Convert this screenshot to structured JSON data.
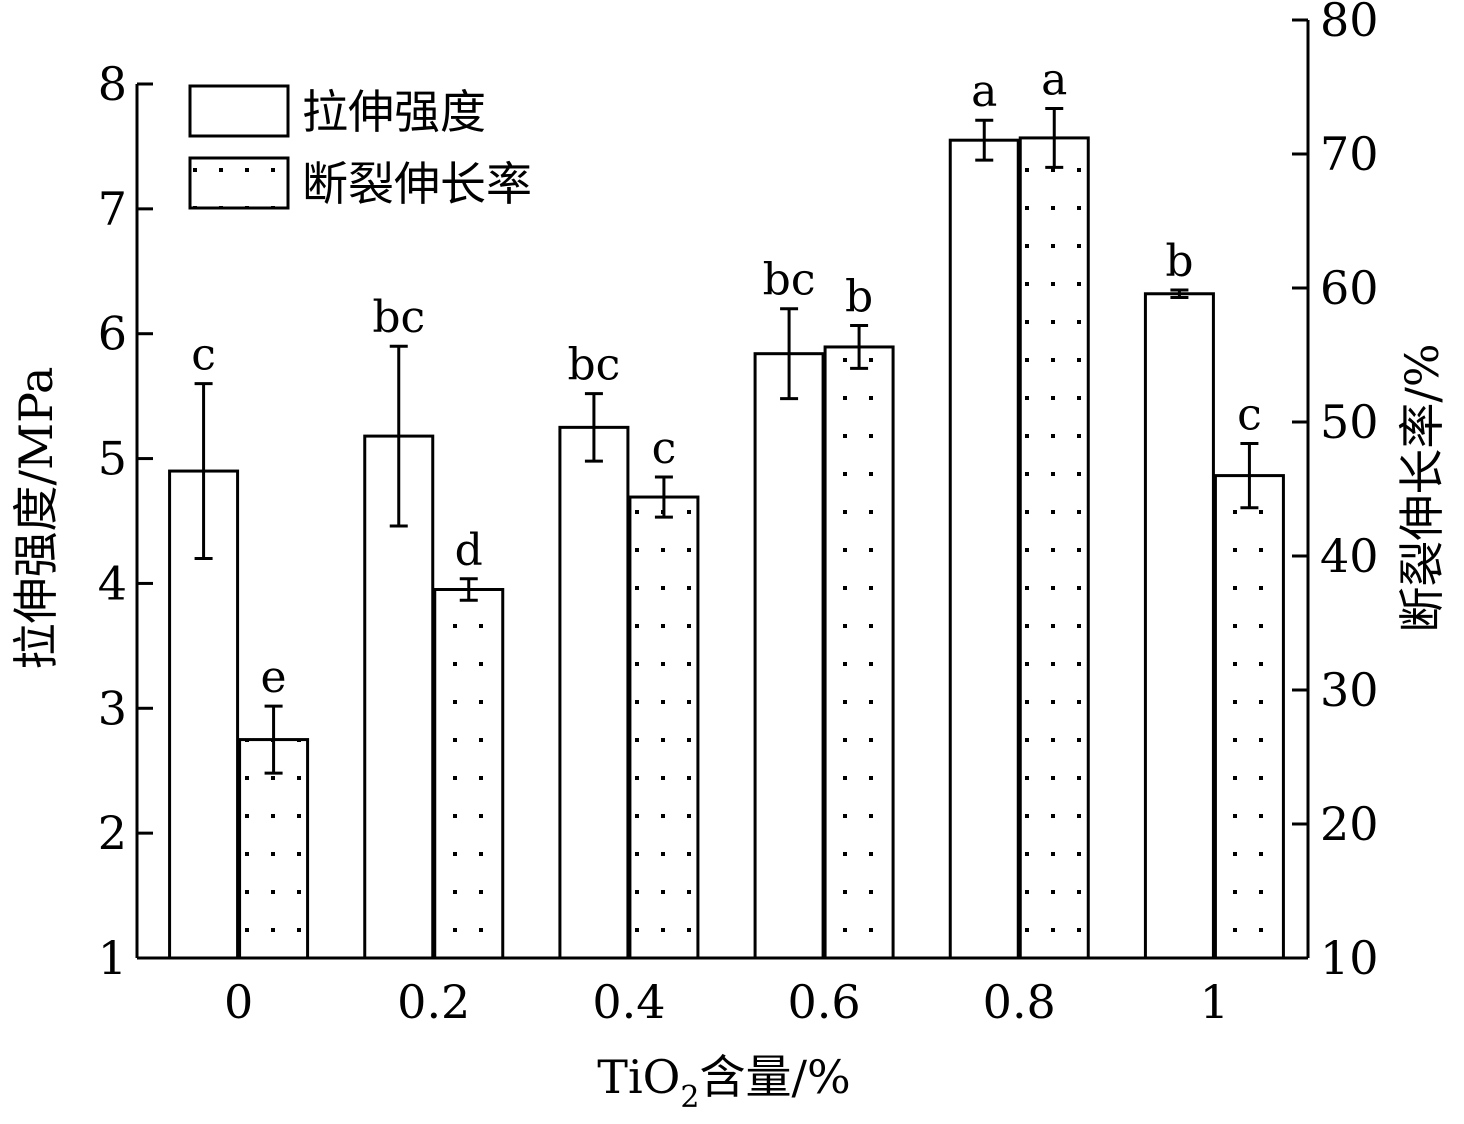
{
  "chart_data": {
    "type": "bar",
    "categories": [
      "0",
      "0.2",
      "0.4",
      "0.6",
      "0.8",
      "1"
    ],
    "xlabel": {
      "main": "TiO",
      "sub": "2",
      "tail": "含量/%"
    },
    "ylabel_left": "拉伸强度/MPa",
    "ylabel_right": "断裂伸长率/%",
    "ylim_left": [
      1,
      8
    ],
    "ylim_right": [
      10,
      80
    ],
    "yticks_left": [
      "1",
      "2",
      "3",
      "4",
      "5",
      "6",
      "7",
      "8"
    ],
    "yticks_right": [
      "10",
      "20",
      "30",
      "40",
      "50",
      "60",
      "70",
      "80"
    ],
    "legend_position": "top-left",
    "series": [
      {
        "name": "拉伸强度",
        "axis": "left",
        "pattern": "open",
        "values": [
          4.9,
          5.18,
          5.25,
          5.84,
          7.55,
          6.32
        ],
        "errors": [
          0.7,
          0.72,
          0.27,
          0.36,
          0.16,
          0.03
        ],
        "letters": [
          "c",
          "bc",
          "bc",
          "bc",
          "a",
          "b"
        ]
      },
      {
        "name": "断裂伸长率",
        "axis": "right",
        "pattern": "dotted",
        "values": [
          26.3,
          37.5,
          44.4,
          55.6,
          71.2,
          46.0
        ],
        "errors": [
          2.5,
          0.8,
          1.5,
          1.6,
          2.2,
          2.4
        ],
        "letters": [
          "e",
          "d",
          "c",
          "b",
          "a",
          "c"
        ]
      }
    ]
  }
}
